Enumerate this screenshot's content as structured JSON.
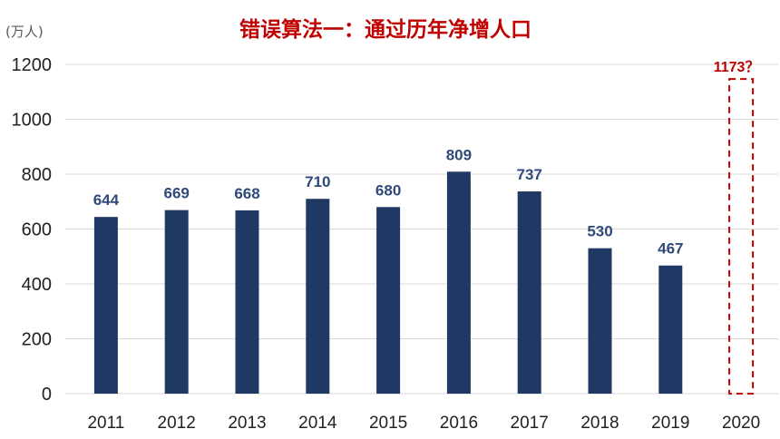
{
  "chart_data": {
    "type": "bar",
    "title": "错误算法一：通过历年净增人口",
    "ylabel": "(万人)",
    "ylim": [
      0,
      1200
    ],
    "yticks": [
      0,
      200,
      400,
      600,
      800,
      1000,
      1200
    ],
    "grid": true,
    "categories": [
      "2011",
      "2012",
      "2013",
      "2014",
      "2015",
      "2016",
      "2017",
      "2018",
      "2019",
      "2020"
    ],
    "values": [
      644,
      669,
      668,
      710,
      680,
      809,
      737,
      530,
      467,
      null
    ],
    "estimate": {
      "category": "2020",
      "value": 1173,
      "label": "1173？"
    }
  },
  "colors": {
    "bar": "#1f3864",
    "data_label": "#2f4a7a",
    "title": "#c00000",
    "estimate": "#c00000",
    "grid": "#d9d9d9",
    "axis_text": "#222222",
    "unit_text": "#595959"
  }
}
